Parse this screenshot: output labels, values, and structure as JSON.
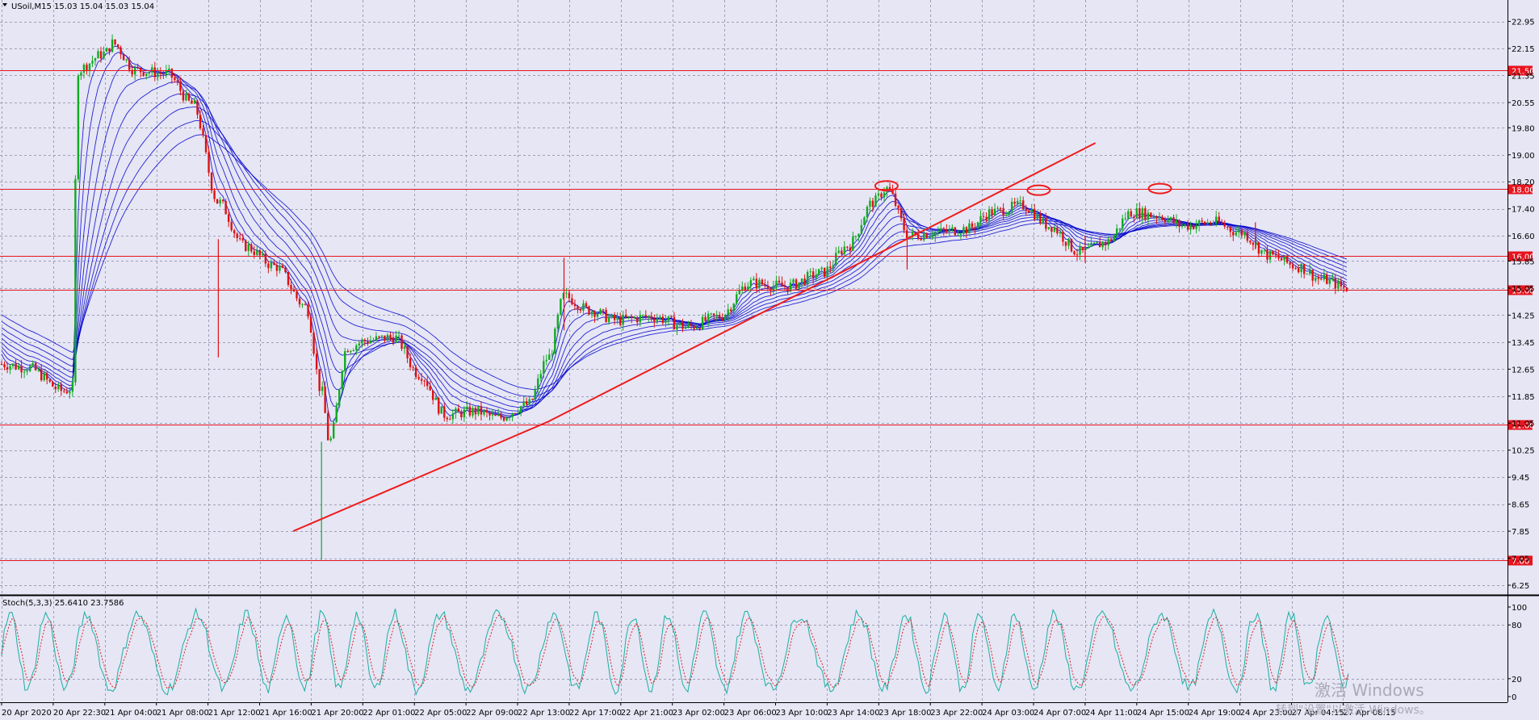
{
  "header": {
    "title": "USoil,M15  15.03 15.04 15.03 15.04",
    "indicator": "Stoch(5,3,3) 25.6410 23.7586"
  },
  "colors": {
    "background": "#e6e6f5",
    "grid": "#9f9fb5",
    "level_line": "#e8141e",
    "trendline": "#ee1c1c",
    "ribbon": "#0000cc",
    "candle_up": "#11aa22",
    "candle_down": "#dd1111",
    "stoch_main": "#1ab0a0",
    "stoch_signal": "#e02020"
  },
  "watermark": {
    "line1": "激活 Windows",
    "line2": "转到\"设置\"以激活 Windows。"
  },
  "chart_data": [
    {
      "type": "line",
      "subtype": "candlestick",
      "symbol": "USoil",
      "timeframe": "M15",
      "ylim": [
        6.25,
        23.25
      ],
      "y_ticks": [
        "22.95",
        "22.15",
        "21.35",
        "20.55",
        "19.80",
        "19.00",
        "18.20",
        "17.40",
        "16.60",
        "15.85",
        "15.05",
        "14.25",
        "13.45",
        "12.65",
        "11.85",
        "11.05",
        "10.25",
        "9.45",
        "8.65",
        "7.85",
        "7.05",
        "6.25"
      ],
      "x_ticks": [
        "20 Apr 2020",
        "20 Apr 22:30",
        "21 Apr 04:00",
        "21 Apr 08:00",
        "21 Apr 12:00",
        "21 Apr 16:00",
        "21 Apr 20:00",
        "22 Apr 01:00",
        "22 Apr 05:00",
        "22 Apr 09:00",
        "22 Apr 13:00",
        "22 Apr 17:00",
        "22 Apr 21:00",
        "23 Apr 02:00",
        "23 Apr 06:00",
        "23 Apr 10:00",
        "23 Apr 14:00",
        "23 Apr 18:00",
        "23 Apr 22:00",
        "24 Apr 03:00",
        "24 Apr 07:00",
        "24 Apr 11:00",
        "24 Apr 15:00",
        "24 Apr 19:00",
        "24 Apr 23:00",
        "27 Apr 04:15",
        "27 Apr 08:15"
      ],
      "horizontal_levels": [
        "21.50",
        "18.00",
        "16.00",
        "15.00",
        "11.00",
        "7.00"
      ],
      "price_path": [
        {
          "x": 0,
          "y": 12.8
        },
        {
          "x": 0.5,
          "y": 12.7
        },
        {
          "x": 1.2,
          "y": 12.0
        },
        {
          "x": 1.4,
          "y": 12.1
        },
        {
          "x": 1.45,
          "y": 21.5
        },
        {
          "x": 2.0,
          "y": 22.0
        },
        {
          "x": 2.15,
          "y": 22.3
        },
        {
          "x": 2.6,
          "y": 21.5
        },
        {
          "x": 3.2,
          "y": 21.4
        },
        {
          "x": 3.7,
          "y": 20.5
        },
        {
          "x": 4.2,
          "y": 17.6
        },
        {
          "x": 4.7,
          "y": 16.3
        },
        {
          "x": 5.3,
          "y": 15.7
        },
        {
          "x": 5.9,
          "y": 14.5
        },
        {
          "x": 6.2,
          "y": 12.0
        },
        {
          "x": 6.35,
          "y": 10.5
        },
        {
          "x": 6.7,
          "y": 13.3
        },
        {
          "x": 7.1,
          "y": 13.5
        },
        {
          "x": 7.6,
          "y": 13.6
        },
        {
          "x": 8.1,
          "y": 12.5
        },
        {
          "x": 8.6,
          "y": 11.3
        },
        {
          "x": 9.2,
          "y": 11.4
        },
        {
          "x": 9.6,
          "y": 11.2
        },
        {
          "x": 10.2,
          "y": 11.6
        },
        {
          "x": 10.6,
          "y": 13.0
        },
        {
          "x": 10.9,
          "y": 14.8
        },
        {
          "x": 11.4,
          "y": 14.4
        },
        {
          "x": 11.9,
          "y": 14.1
        },
        {
          "x": 12.6,
          "y": 14.2
        },
        {
          "x": 13.3,
          "y": 13.9
        },
        {
          "x": 13.9,
          "y": 14.2
        },
        {
          "x": 14.5,
          "y": 15.2
        },
        {
          "x": 15.2,
          "y": 15.1
        },
        {
          "x": 15.9,
          "y": 15.5
        },
        {
          "x": 16.4,
          "y": 16.3
        },
        {
          "x": 16.9,
          "y": 17.6
        },
        {
          "x": 17.15,
          "y": 18.0
        },
        {
          "x": 17.6,
          "y": 16.6
        },
        {
          "x": 18.1,
          "y": 16.7
        },
        {
          "x": 18.7,
          "y": 16.8
        },
        {
          "x": 19.2,
          "y": 17.3
        },
        {
          "x": 19.8,
          "y": 17.5
        },
        {
          "x": 20.3,
          "y": 16.9
        },
        {
          "x": 20.9,
          "y": 16.1
        },
        {
          "x": 21.4,
          "y": 16.4
        },
        {
          "x": 21.9,
          "y": 17.3
        },
        {
          "x": 22.4,
          "y": 17.2
        },
        {
          "x": 22.9,
          "y": 16.9
        },
        {
          "x": 23.5,
          "y": 17.0
        },
        {
          "x": 24.0,
          "y": 16.7
        },
        {
          "x": 24.6,
          "y": 16.0
        },
        {
          "x": 25.1,
          "y": 15.7
        },
        {
          "x": 25.6,
          "y": 15.3
        },
        {
          "x": 26.1,
          "y": 15.04
        }
      ],
      "trendlines": [
        {
          "x1": 5.65,
          "y1": 7.85,
          "x2": 10.6,
          "y2": 11.1
        },
        {
          "x1": 10.6,
          "y1": 11.1,
          "x2": 21.2,
          "y2": 19.35
        }
      ],
      "ellipse_marks": [
        {
          "x": 17.15,
          "y": 18.08
        },
        {
          "x": 20.1,
          "y": 17.95
        },
        {
          "x": 22.45,
          "y": 18.0
        }
      ]
    },
    {
      "type": "line",
      "subtype": "stochastic",
      "name": "Stoch(5,3,3)",
      "ylim": [
        0,
        100
      ],
      "y_ticks": [
        "100",
        "80",
        "20",
        "0"
      ],
      "main_value": 25.641,
      "signal_value": 23.7586
    }
  ]
}
